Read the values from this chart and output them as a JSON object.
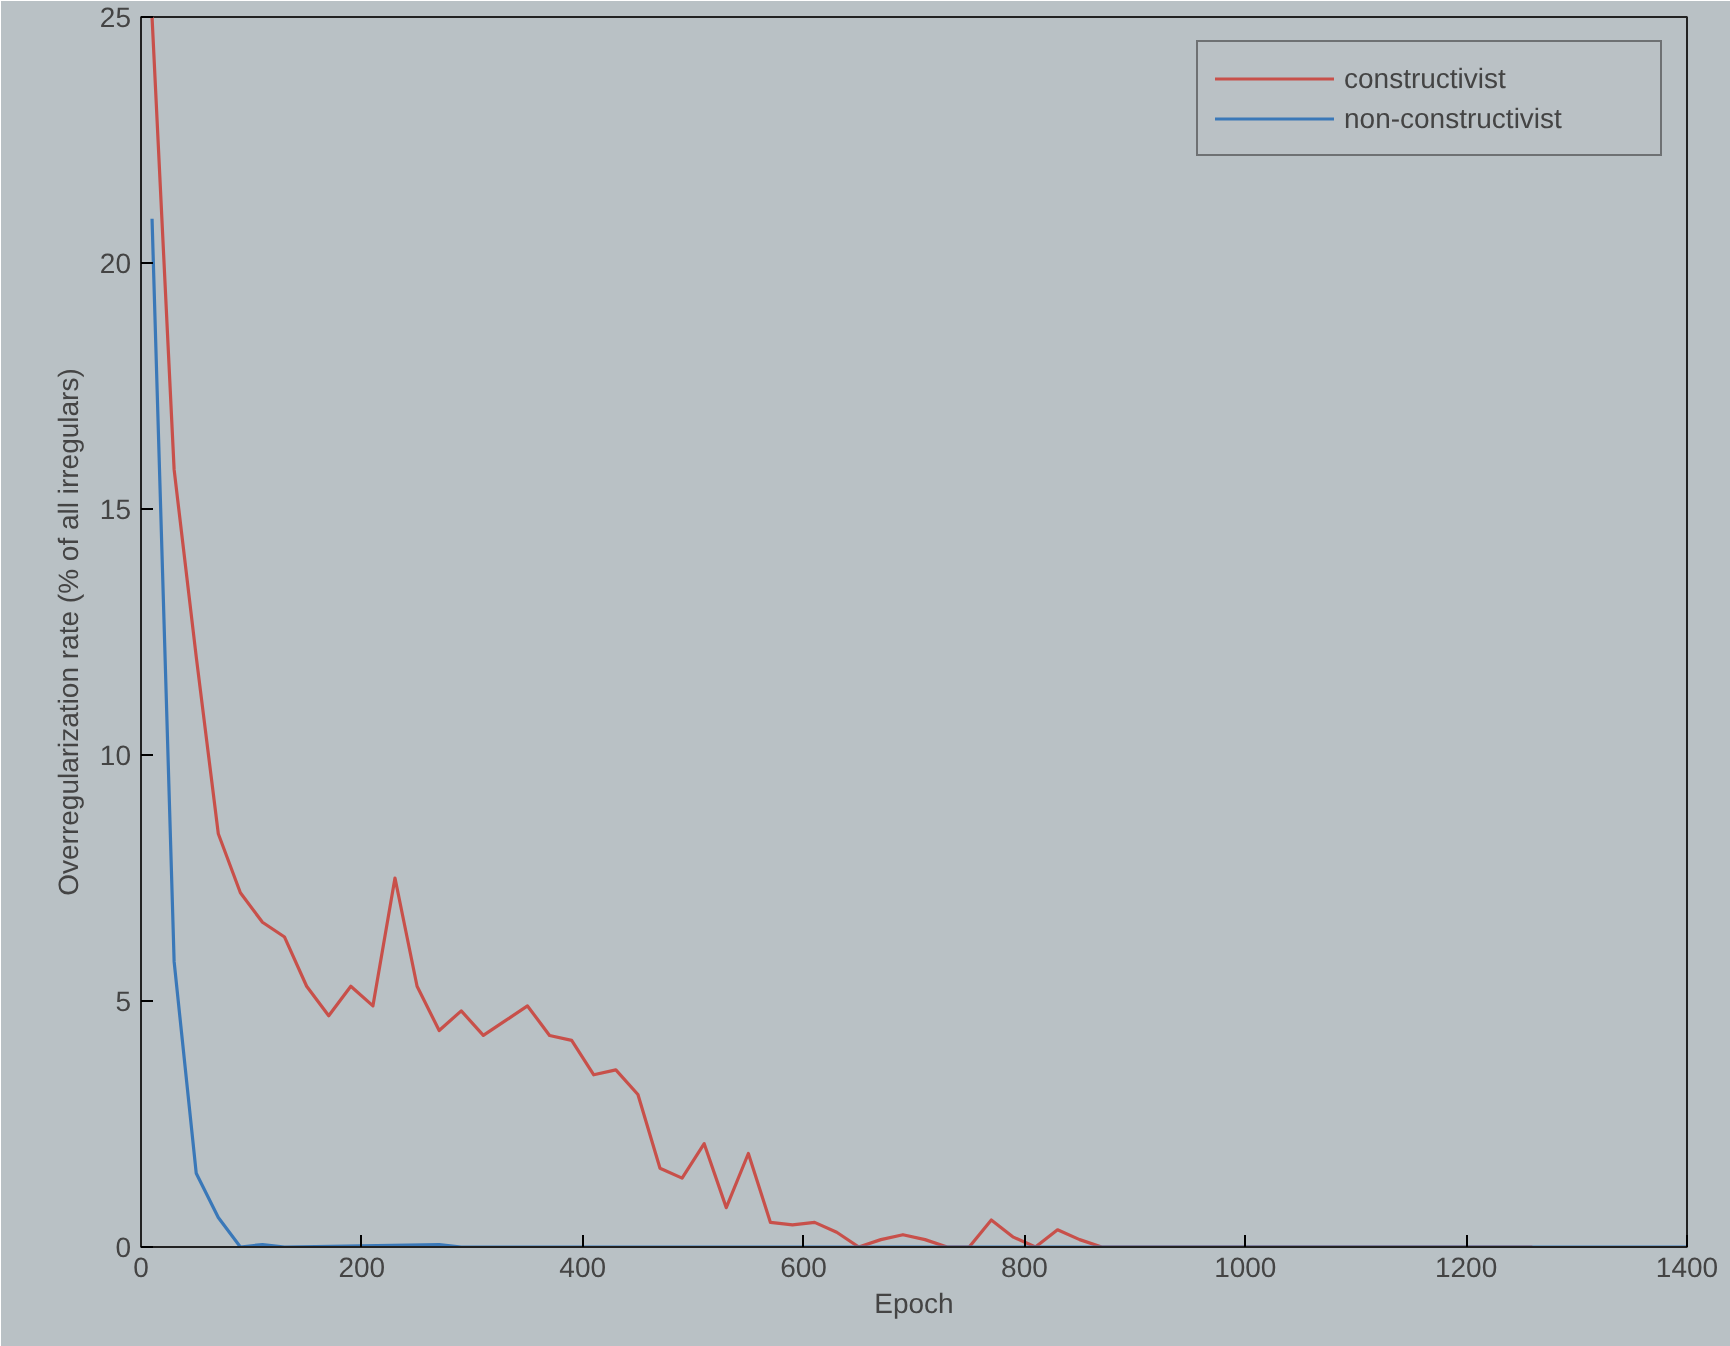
{
  "chart_data": {
    "type": "line",
    "xlabel": "Epoch",
    "ylabel": "Overregularization rate (% of all irregulars)",
    "xlim": [
      0,
      1400
    ],
    "ylim": [
      0,
      25
    ],
    "xticks": [
      0,
      200,
      400,
      600,
      800,
      1000,
      1200,
      1400
    ],
    "yticks": [
      0,
      5,
      10,
      15,
      20,
      25
    ],
    "grid": false,
    "legend": "top right",
    "series": [
      {
        "name": "constructivist",
        "color": "#c8504a",
        "x": [
          10,
          30,
          50,
          70,
          90,
          110,
          130,
          150,
          170,
          190,
          210,
          230,
          250,
          270,
          290,
          310,
          330,
          350,
          370,
          390,
          410,
          430,
          450,
          470,
          490,
          510,
          530,
          550,
          570,
          590,
          610,
          630,
          650,
          670,
          690,
          710,
          730,
          750,
          770,
          790,
          810,
          830,
          850,
          870,
          890,
          1260
        ],
        "values": [
          25,
          15.8,
          12,
          8.4,
          7.2,
          6.6,
          6.3,
          5.3,
          4.7,
          5.3,
          4.9,
          7.5,
          5.3,
          4.4,
          4.8,
          4.3,
          4.6,
          4.9,
          4.3,
          4.2,
          3.5,
          3.6,
          3.1,
          1.6,
          1.4,
          2.1,
          0.8,
          1.9,
          0.5,
          0.45,
          0.5,
          0.3,
          0,
          0.15,
          0.25,
          0.15,
          0,
          0,
          0.55,
          0.2,
          0,
          0.35,
          0.15,
          0,
          0,
          0
        ]
      },
      {
        "name": "non-constructivist",
        "color": "#3a78b8",
        "x": [
          10,
          30,
          50,
          70,
          90,
          110,
          130,
          270,
          290,
          1400
        ],
        "values": [
          20.9,
          5.8,
          1.5,
          0.6,
          0,
          0.05,
          0,
          0.05,
          0,
          0
        ]
      }
    ]
  }
}
